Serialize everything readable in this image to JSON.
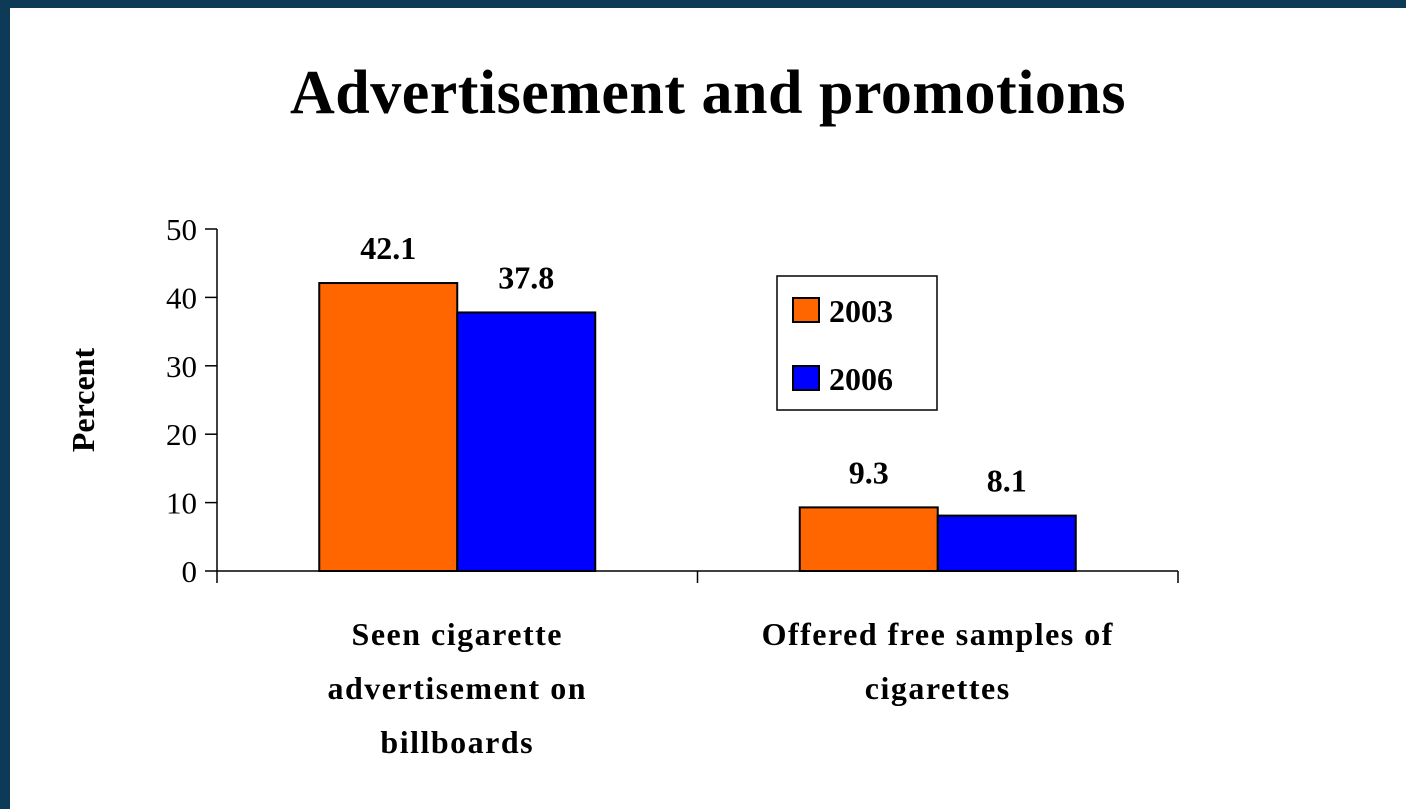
{
  "chart_data": {
    "type": "bar",
    "title": "Advertisement and promotions",
    "ylabel": "Percent",
    "xlabel": "",
    "ylim": [
      0,
      50
    ],
    "yticks": [
      0,
      10,
      20,
      30,
      40,
      50
    ],
    "categories": [
      [
        "Seen cigarette",
        "advertisement on",
        "billboards"
      ],
      [
        "Offered free samples of",
        "cigarettes"
      ]
    ],
    "series": [
      {
        "name": "2003",
        "color": "#ff6600",
        "values": [
          42.1,
          9.3
        ]
      },
      {
        "name": "2006",
        "color": "#0000ff",
        "values": [
          37.8,
          8.1
        ]
      }
    ],
    "legend_position": "right"
  }
}
